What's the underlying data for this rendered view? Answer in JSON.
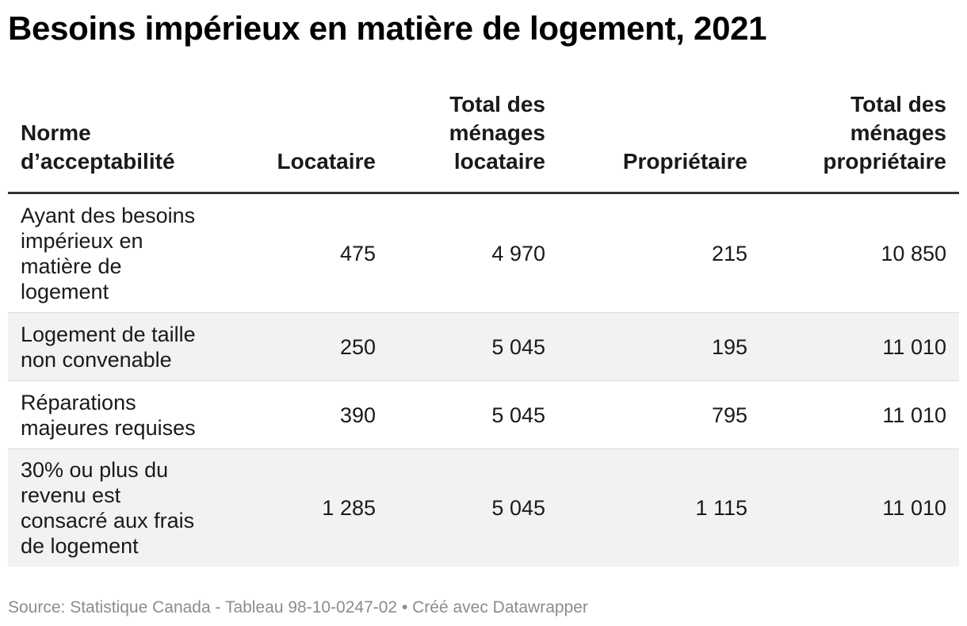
{
  "chart_data": {
    "type": "table",
    "title": "Besoins impérieux en matière de logement, 2021",
    "columns": [
      [
        "Norme",
        "d’acceptabilité"
      ],
      [
        "Locataire"
      ],
      [
        "Total des",
        "ménages",
        "locataire"
      ],
      [
        "Propriétaire"
      ],
      [
        "Total des",
        "ménages",
        "propriétaire"
      ]
    ],
    "rows": [
      {
        "label": [
          "Ayant des besoins",
          "impérieux en",
          "matière de",
          "logement"
        ],
        "values": [
          "475",
          "4 970",
          "215",
          "10 850"
        ]
      },
      {
        "label": [
          "Logement de taille",
          "non convenable"
        ],
        "values": [
          "250",
          "5 045",
          "195",
          "11 010"
        ]
      },
      {
        "label": [
          "Réparations",
          "majeures requises"
        ],
        "values": [
          "390",
          "5 045",
          "795",
          "11 010"
        ]
      },
      {
        "label": [
          "30% ou plus du",
          "revenu est",
          "consacré aux frais",
          "de logement"
        ],
        "values": [
          "1 285",
          "5 045",
          "1 115",
          "11 010"
        ]
      }
    ],
    "footer": "Source: Statistique Canada - Tableau 98-10-0247-02 • Créé avec Datawrapper"
  }
}
